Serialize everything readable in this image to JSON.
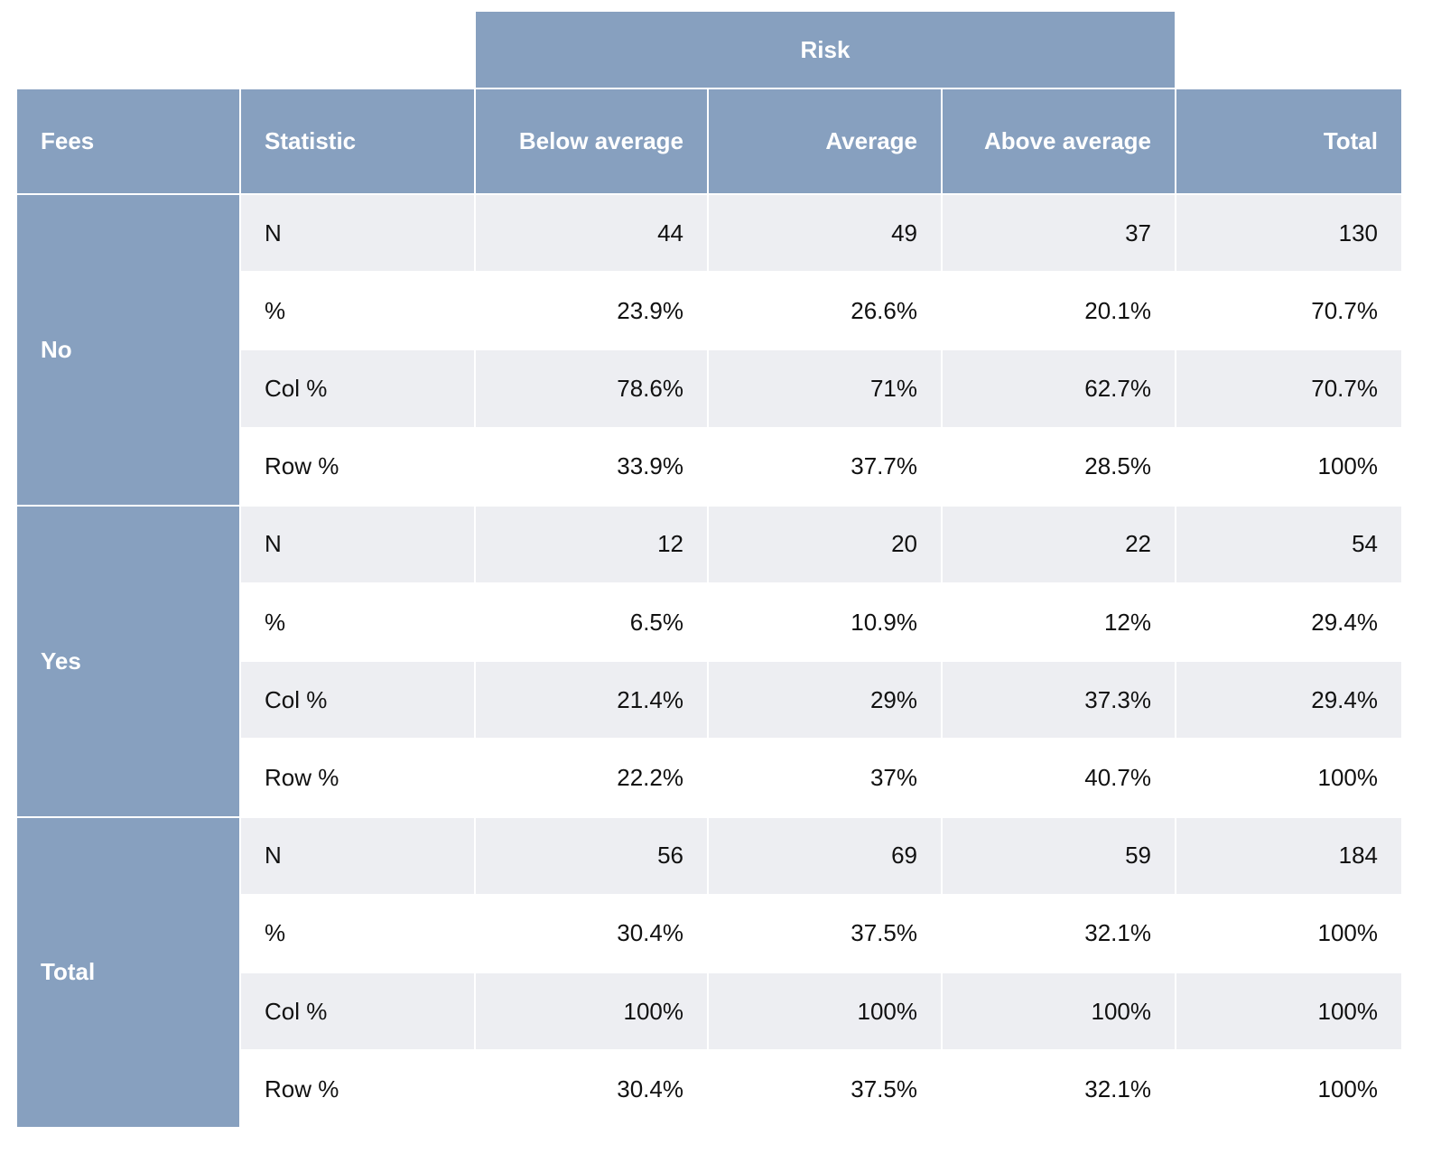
{
  "table": {
    "super_header": "Risk",
    "columns": [
      "Fees",
      "Statistic",
      "Below average",
      "Average",
      "Above average",
      "Total"
    ],
    "groups": [
      {
        "label": "No",
        "rows": [
          {
            "statistic": "N",
            "cells": [
              "44",
              "49",
              "37",
              "130"
            ]
          },
          {
            "statistic": "%",
            "cells": [
              "23.9%",
              "26.6%",
              "20.1%",
              "70.7%"
            ]
          },
          {
            "statistic": "Col %",
            "cells": [
              "78.6%",
              "71%",
              "62.7%",
              "70.7%"
            ]
          },
          {
            "statistic": "Row %",
            "cells": [
              "33.9%",
              "37.7%",
              "28.5%",
              "100%"
            ]
          }
        ]
      },
      {
        "label": "Yes",
        "rows": [
          {
            "statistic": "N",
            "cells": [
              "12",
              "20",
              "22",
              "54"
            ]
          },
          {
            "statistic": "%",
            "cells": [
              "6.5%",
              "10.9%",
              "12%",
              "29.4%"
            ]
          },
          {
            "statistic": "Col %",
            "cells": [
              "21.4%",
              "29%",
              "37.3%",
              "29.4%"
            ]
          },
          {
            "statistic": "Row %",
            "cells": [
              "22.2%",
              "37%",
              "40.7%",
              "100%"
            ]
          }
        ]
      },
      {
        "label": "Total",
        "rows": [
          {
            "statistic": "N",
            "cells": [
              "56",
              "69",
              "59",
              "184"
            ]
          },
          {
            "statistic": "%",
            "cells": [
              "30.4%",
              "37.5%",
              "32.1%",
              "100%"
            ]
          },
          {
            "statistic": "Col %",
            "cells": [
              "100%",
              "100%",
              "100%",
              "100%"
            ]
          },
          {
            "statistic": "Row %",
            "cells": [
              "30.4%",
              "37.5%",
              "32.1%",
              "100%"
            ]
          }
        ]
      }
    ]
  }
}
